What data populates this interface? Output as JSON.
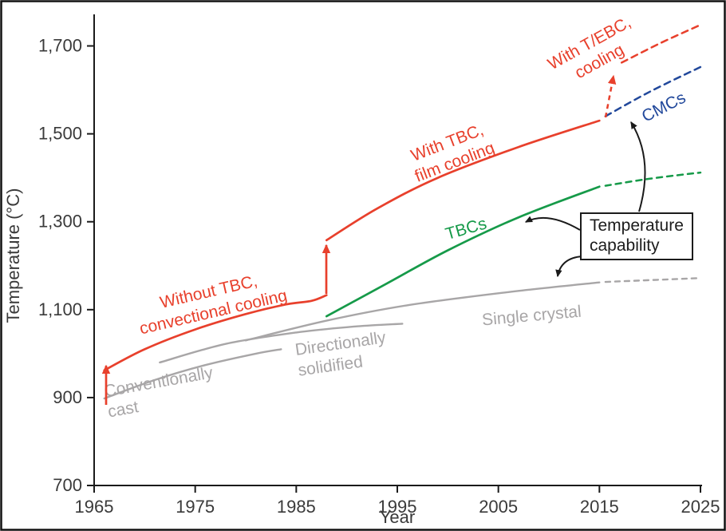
{
  "figure": {
    "background": "#ffffff",
    "border_color": "#111111"
  },
  "colors": {
    "red": "#e8402c",
    "green": "#169a49",
    "blue": "#21489b",
    "gray": "#a8a6a7",
    "axis": "#1a1a1a",
    "text": "#3a3a3a"
  },
  "chart_data": {
    "type": "line",
    "title": "",
    "xlabel": "Year",
    "ylabel": "Temperature (°C)",
    "xlim": [
      1965,
      2025
    ],
    "ylim": [
      700,
      1750
    ],
    "xticks": [
      1965,
      1975,
      1985,
      1995,
      2005,
      2015,
      2025
    ],
    "yticks": [
      700,
      900,
      1100,
      1300,
      1500,
      1700
    ],
    "ytick_labels": [
      "700",
      "900",
      "1,100",
      "1,300",
      "1,500",
      "1,700"
    ],
    "grid": false,
    "legend": "none",
    "series": [
      {
        "id": "conventionally-cast",
        "name": "Conventionally cast",
        "color": "gray",
        "width": 2.4,
        "points": [
          [
            1966,
            898
          ],
          [
            1971,
            940
          ],
          [
            1976,
            974
          ],
          [
            1981,
            1000
          ],
          [
            1983.5,
            1010
          ]
        ]
      },
      {
        "id": "directionally-solidified",
        "name": "Directionally solidified",
        "color": "gray",
        "width": 2.4,
        "points": [
          [
            1971.5,
            980
          ],
          [
            1978,
            1022
          ],
          [
            1985,
            1048
          ],
          [
            1991,
            1062
          ],
          [
            1995.5,
            1068
          ]
        ]
      },
      {
        "id": "single-crystal",
        "name": "Single crystal",
        "color": "gray",
        "width": 2.4,
        "points": [
          [
            1980,
            1030
          ],
          [
            1988,
            1075
          ],
          [
            1996,
            1110
          ],
          [
            2006,
            1140
          ],
          [
            2015,
            1162
          ]
        ]
      },
      {
        "id": "single-crystal-projection",
        "name": "Single crystal (projected)",
        "color": "gray",
        "width": 2.4,
        "dasharray": "6 6",
        "points": [
          [
            2015.6,
            1163
          ],
          [
            2025,
            1172
          ]
        ]
      },
      {
        "id": "without-tbc",
        "name": "Without TBC, convectional cooling",
        "color": "red",
        "width": 2.7,
        "points": [
          [
            1966,
            962
          ],
          [
            1970,
            1010
          ],
          [
            1975,
            1055
          ],
          [
            1980,
            1090
          ],
          [
            1984,
            1112
          ],
          [
            1986.5,
            1120
          ],
          [
            1988,
            1133
          ]
        ]
      },
      {
        "id": "with-tbc",
        "name": "With TBC, film cooling",
        "color": "red",
        "width": 2.7,
        "points": [
          [
            1988,
            1258
          ],
          [
            1993,
            1330
          ],
          [
            1999,
            1400
          ],
          [
            2007,
            1470
          ],
          [
            2015,
            1530
          ]
        ]
      },
      {
        "id": "with-tebc",
        "name": "With T/EBC, cooling (projected)",
        "color": "red",
        "width": 2.5,
        "dasharray": "8 6",
        "points": [
          [
            2017.2,
            1662
          ],
          [
            2021,
            1706
          ],
          [
            2025,
            1748
          ]
        ]
      },
      {
        "id": "cmcs",
        "name": "CMCs (projected)",
        "color": "blue",
        "width": 2.5,
        "dasharray": "8 6",
        "points": [
          [
            2015.6,
            1540
          ],
          [
            2020,
            1596
          ],
          [
            2025,
            1652
          ]
        ]
      },
      {
        "id": "tbcs",
        "name": "TBCs",
        "color": "green",
        "width": 2.7,
        "points": [
          [
            1988,
            1085
          ],
          [
            1994,
            1160
          ],
          [
            2000,
            1235
          ],
          [
            2007,
            1310
          ],
          [
            2015,
            1380
          ]
        ]
      },
      {
        "id": "tbcs-projection",
        "name": "TBCs (projected)",
        "color": "green",
        "width": 2.5,
        "dasharray": "7 6",
        "points": [
          [
            2015.6,
            1382
          ],
          [
            2020,
            1398
          ],
          [
            2025,
            1412
          ]
        ]
      }
    ],
    "annotations": [
      {
        "id": "label-without-tbc",
        "lines": [
          "Without TBC,",
          "convectional cooling"
        ],
        "color": "red",
        "x": 263,
        "y": 372,
        "rotate": -13,
        "anchor": "middle"
      },
      {
        "id": "label-with-tbc",
        "lines": [
          "With TBC,",
          "film cooling"
        ],
        "color": "red",
        "x": 563,
        "y": 185,
        "rotate": -21,
        "anchor": "middle"
      },
      {
        "id": "label-with-tebc",
        "lines": [
          "With T/EBC,",
          "cooling"
        ],
        "color": "red",
        "x": 742,
        "y": 60,
        "rotate": -29,
        "anchor": "middle"
      },
      {
        "id": "label-cmcs",
        "lines": [
          "CMCs"
        ],
        "color": "blue",
        "x": 835,
        "y": 140,
        "rotate": -27,
        "anchor": "middle"
      },
      {
        "id": "label-tbcs",
        "lines": [
          "TBCs"
        ],
        "color": "green",
        "x": 586,
        "y": 293,
        "rotate": -16,
        "anchor": "middle"
      },
      {
        "id": "label-single-crystal",
        "lines": [
          "Single crystal"
        ],
        "color": "gray",
        "x": 667,
        "y": 402,
        "rotate": -5,
        "anchor": "middle"
      },
      {
        "id": "label-directionally-solidified",
        "lines": [
          "Directionally",
          "solidified"
        ],
        "color": "gray",
        "x": 371,
        "y": 445,
        "rotate": -8,
        "anchor": "start"
      },
      {
        "id": "label-conventionally-cast",
        "lines": [
          "Conventionally",
          "cast"
        ],
        "color": "gray",
        "x": 132,
        "y": 497,
        "rotate": -10,
        "anchor": "start"
      }
    ],
    "arrows": [
      {
        "id": "arrow-initial-gain",
        "color": "red",
        "dashed": false,
        "width": 2.7,
        "from": [
          133,
          507
        ],
        "to": [
          133,
          458
        ]
      },
      {
        "id": "arrow-tbc-jump",
        "color": "red",
        "dashed": false,
        "width": 2.7,
        "from": [
          409,
          368
        ],
        "to": [
          409,
          307
        ]
      },
      {
        "id": "arrow-tebc-projection",
        "color": "red",
        "dashed": true,
        "width": 2.5,
        "from": [
          759,
          147
        ],
        "to": [
          769,
          95
        ]
      },
      {
        "id": "arrow-callout-tbcs",
        "color": "black",
        "dashed": false,
        "width": 2,
        "from": [
          727,
          288
        ],
        "ctrl": [
          686,
          264
        ],
        "to": [
          659,
          278
        ]
      },
      {
        "id": "arrow-callout-single-crystal",
        "color": "black",
        "dashed": false,
        "width": 2,
        "from": [
          730,
          321
        ],
        "ctrl": [
          703,
          323
        ],
        "to": [
          699,
          346
        ]
      },
      {
        "id": "arrow-callout-cmcs",
        "color": "black",
        "dashed": false,
        "width": 2,
        "from": [
          801,
          265
        ],
        "ctrl": [
          820,
          200
        ],
        "to": [
          791,
          153
        ]
      }
    ],
    "callout_box": {
      "lines": [
        "Temperature",
        "capability"
      ]
    }
  }
}
